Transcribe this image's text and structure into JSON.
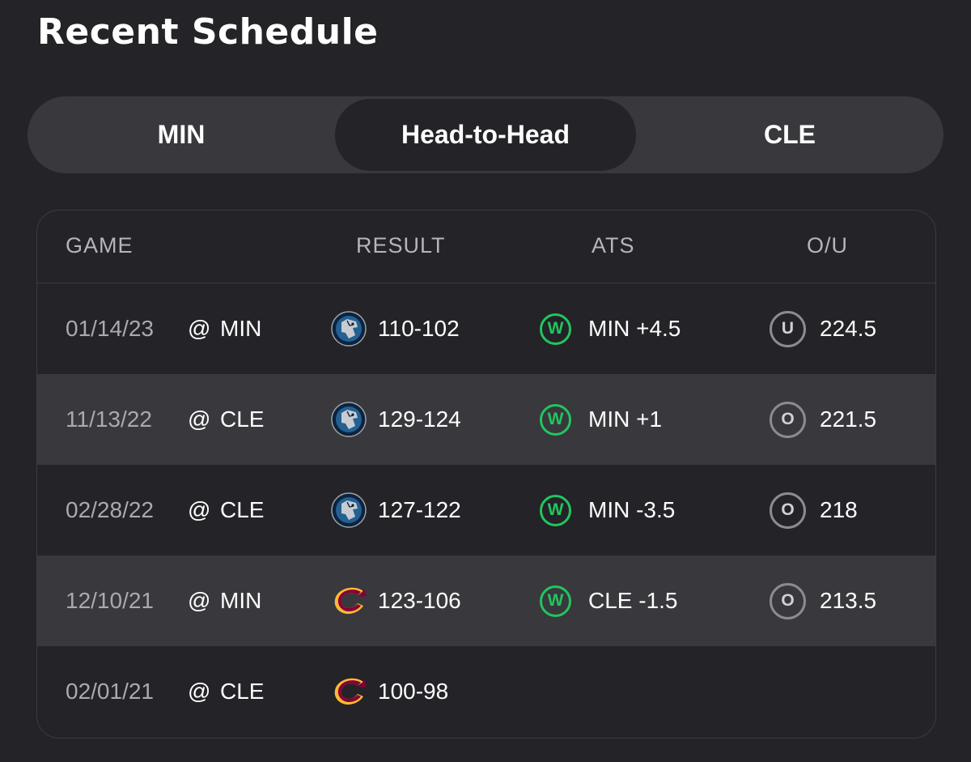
{
  "header": {
    "title": "Recent Schedule"
  },
  "tabs": [
    {
      "label": "MIN",
      "active": false
    },
    {
      "label": "Head-to-Head",
      "active": true
    },
    {
      "label": "CLE",
      "active": false
    }
  ],
  "table": {
    "columns": [
      "GAME",
      "RESULT",
      "ATS",
      "O/U"
    ],
    "rows": [
      {
        "date": "01/14/23",
        "at": "@",
        "opponent": "MIN",
        "winner_logo": "timberwolves-logo",
        "score": "110-102",
        "ats_badge": "W",
        "ats": "MIN +4.5",
        "ou_badge": "U",
        "ou": "224.5"
      },
      {
        "date": "11/13/22",
        "at": "@",
        "opponent": "CLE",
        "winner_logo": "timberwolves-logo",
        "score": "129-124",
        "ats_badge": "W",
        "ats": "MIN +1",
        "ou_badge": "O",
        "ou": "221.5"
      },
      {
        "date": "02/28/22",
        "at": "@",
        "opponent": "CLE",
        "winner_logo": "timberwolves-logo",
        "score": "127-122",
        "ats_badge": "W",
        "ats": "MIN -3.5",
        "ou_badge": "O",
        "ou": "218"
      },
      {
        "date": "12/10/21",
        "at": "@",
        "opponent": "MIN",
        "winner_logo": "cavaliers-logo",
        "score": "123-106",
        "ats_badge": "W",
        "ats": "CLE -1.5",
        "ou_badge": "O",
        "ou": "213.5"
      },
      {
        "date": "02/01/21",
        "at": "@",
        "opponent": "CLE",
        "winner_logo": "cavaliers-logo",
        "score": "100-98",
        "ats_badge": "",
        "ats": "",
        "ou_badge": "",
        "ou": ""
      }
    ]
  },
  "colors": {
    "background": "#232328",
    "tab_bar": "#38383d",
    "alt_row": "#38383d",
    "win_green": "#22c55e",
    "badge_gray": "#8b8b92"
  }
}
